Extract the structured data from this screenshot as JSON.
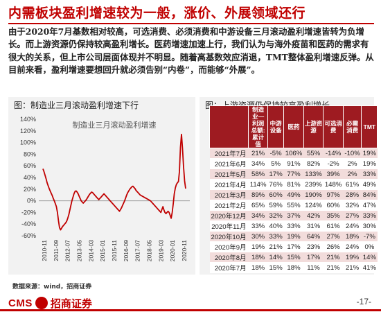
{
  "title": "内需板块盈利增速较为一般，涨价、外展领域还行",
  "intro": "由于2020年7月基数相对较高，可选消费、必须消费和中游设备三月滚动盈利增速皆转为负增长。而上游资源仍保持较高盈利增长。医药增速加速上行，我们认为与海外疫苗和医药的需求有很大的关系，但上市公司层面体现并不明显。随着高基数效应消退，TMT整体盈利增速反弹。从目前来看，盈利增速要想回升就必须告别“内卷”，而能够“外展”。",
  "left_panel": {
    "caption": "图：制造业三月滚动盈利增速下行"
  },
  "right_panel": {
    "caption": "图：上游资源仍保持较高盈利增长",
    "headers": [
      "",
      "制造业—利润总额:累计值",
      "中游设备",
      "医药",
      "上游资源",
      "可选消费",
      "必需消费",
      "TMT"
    ],
    "rows": [
      {
        "label": "2021年7月",
        "values": [
          "21%",
          "-5%",
          "106%",
          "55%",
          "-14%",
          "-10%",
          "19%"
        ]
      },
      {
        "label": "2021年6月",
        "values": [
          "34%",
          "5%",
          "91%",
          "82%",
          "-2%",
          "2%",
          "19%"
        ]
      },
      {
        "label": "2021年5月",
        "values": [
          "58%",
          "17%",
          "77%",
          "133%",
          "39%",
          "2%",
          "33%"
        ]
      },
      {
        "label": "2021年4月",
        "values": [
          "114%",
          "76%",
          "81%",
          "239%",
          "148%",
          "61%",
          "49%"
        ]
      },
      {
        "label": "2021年3月",
        "values": [
          "89%",
          "60%",
          "49%",
          "190%",
          "97%",
          "28%",
          "84%"
        ]
      },
      {
        "label": "2021年2月",
        "values": [
          "65%",
          "59%",
          "55%",
          "124%",
          "60%",
          "32%",
          "47%"
        ]
      },
      {
        "label": "2020年12月",
        "values": [
          "34%",
          "32%",
          "37%",
          "42%",
          "35%",
          "27%",
          "33%"
        ]
      },
      {
        "label": "2020年11月",
        "values": [
          "33%",
          "40%",
          "33%",
          "31%",
          "61%",
          "24%",
          "30%"
        ]
      },
      {
        "label": "2020年10月",
        "values": [
          "30%",
          "33%",
          "19%",
          "64%",
          "27%",
          "18%",
          "-7%"
        ]
      },
      {
        "label": "2020年9月",
        "values": [
          "19%",
          "21%",
          "17%",
          "23%",
          "26%",
          "24%",
          "0%"
        ]
      },
      {
        "label": "2020年8月",
        "values": [
          "18%",
          "14%",
          "15%",
          "17%",
          "21%",
          "19%",
          "14%"
        ]
      },
      {
        "label": "2020年7月",
        "values": [
          "18%",
          "15%",
          "18%",
          "11%",
          "21%",
          "21%",
          "41%"
        ]
      }
    ]
  },
  "source": "数据来源：wind，招商证券",
  "logo": {
    "cms": "CMS",
    "name": "招商证券"
  },
  "page_number": "-17-",
  "colors": {
    "brand_red": "#c00000",
    "line_red": "#c00000",
    "row_pink": "#f2dcdb",
    "header_red": "#9e1b21"
  },
  "chart_data": {
    "type": "line",
    "title": "制造业三月滚动盈利增速",
    "xlabel": "",
    "ylabel": "",
    "ylim": [
      -60,
      140
    ],
    "y_ticks": [
      "-60%",
      "-40%",
      "-20%",
      "0%",
      "20%",
      "40%",
      "60%",
      "80%",
      "100%",
      "120%",
      "140%"
    ],
    "x_ticks": [
      "2010-11",
      "2011-09",
      "2012-07",
      "2013-05",
      "2014-03",
      "2015-01",
      "2015-11",
      "2016-09",
      "2017-07",
      "2018-05",
      "2019-03",
      "2020-01",
      "2020-11"
    ],
    "series": [
      {
        "name": "制造业三月滚动盈利增速",
        "values": [
          55,
          50,
          44,
          38,
          31,
          26,
          21,
          17,
          13,
          9,
          4,
          0,
          -5,
          -10,
          -20,
          -34,
          -46,
          -50,
          -47,
          -44,
          -42,
          -40,
          -38,
          -35,
          -30,
          -24,
          -16,
          -8,
          0,
          6,
          12,
          16,
          17,
          15,
          12,
          8,
          4,
          0,
          -2,
          -4,
          -2,
          0,
          2,
          5,
          8,
          11,
          13,
          15,
          14,
          12,
          10,
          8,
          6,
          4,
          2,
          4,
          6,
          8,
          10,
          12,
          10,
          8,
          6,
          4,
          2,
          0,
          -2,
          -4,
          -6,
          -8,
          -10,
          -12,
          -14,
          -16,
          -18,
          -15,
          -12,
          -8,
          -4,
          0,
          5,
          10,
          14,
          17,
          20,
          22,
          24,
          25,
          23,
          21,
          18,
          16,
          14,
          12,
          10,
          9,
          8,
          7,
          6,
          5,
          4,
          3,
          2,
          1,
          0,
          -2,
          -4,
          -6,
          -8,
          -10,
          -12,
          -14,
          -16,
          -18,
          -20,
          -15,
          -10,
          -16,
          -20,
          -22,
          -20,
          -18,
          -20,
          -25,
          -30,
          -20,
          -5,
          12,
          22,
          28,
          31,
          33,
          50,
          92,
          114,
          89,
          58,
          34,
          21
        ]
      }
    ]
  }
}
